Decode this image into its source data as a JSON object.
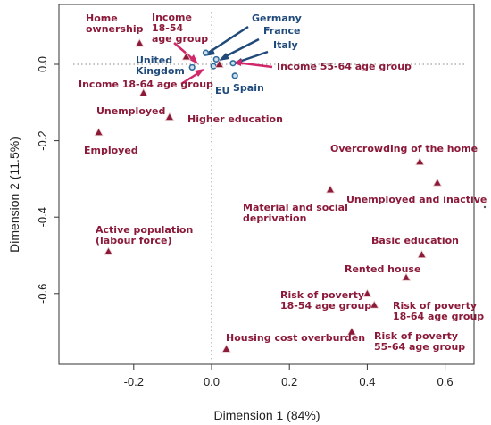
{
  "chart_data": {
    "type": "scatter",
    "xlabel": "Dimension 1 (84%)",
    "ylabel": "Dimension 2 (11.5%)",
    "xlim": [
      -0.4,
      0.7
    ],
    "ylim": [
      -0.78,
      0.15
    ],
    "xticks": [
      -0.2,
      0.0,
      0.2,
      0.4,
      0.6
    ],
    "xtick_labels": [
      "-0.2",
      "0.0",
      "0.2",
      "0.4",
      "0.6"
    ],
    "yticks": [
      0.0,
      -0.2,
      -0.4,
      -0.6
    ],
    "ytick_labels": [
      "0.0",
      "-0.2",
      "-0.4",
      "-0.6"
    ],
    "reference_lines": {
      "x": 0,
      "y": 0,
      "style": "dotted"
    },
    "colors": {
      "variables": "#8b1a3a",
      "countries": "#2e6a9c",
      "arrows_countries": "#1f4a7a",
      "arrows_variables": "#d0286a"
    },
    "variables": [
      {
        "label": [
          "Home",
          "ownership"
        ],
        "x": -0.185,
        "y": 0.055
      },
      {
        "label": [
          "Income",
          "18-54",
          "age group"
        ],
        "x": -0.065,
        "y": 0.02
      },
      {
        "label": [
          "Income 18-64 age group"
        ],
        "x": -0.175,
        "y": -0.075
      },
      {
        "label": [
          "Income 55-64 age group"
        ],
        "x": 0.02,
        "y": 0.0
      },
      {
        "label": [
          "Unemployed"
        ],
        "x": -0.108,
        "y": -0.138
      },
      {
        "label": [
          "Higher education"
        ],
        "x": -0.108,
        "y": -0.138
      },
      {
        "label": [
          "Employed"
        ],
        "x": -0.29,
        "y": -0.178
      },
      {
        "label": [
          "Overcrowding of the home"
        ],
        "x": 0.535,
        "y": -0.255
      },
      {
        "label": [
          "Unemployed and inactive"
        ],
        "x": 0.58,
        "y": -0.31
      },
      {
        "label": [
          "Material and social",
          "deprivation"
        ],
        "x": 0.305,
        "y": -0.328
      },
      {
        "label": [
          "Active population",
          "(labour force)"
        ],
        "x": -0.265,
        "y": -0.49
      },
      {
        "label": [
          "Basic education"
        ],
        "x": 0.54,
        "y": -0.498
      },
      {
        "label": [
          "Rented house"
        ],
        "x": 0.5,
        "y": -0.558
      },
      {
        "label": [
          "Risk  of  poverty",
          "18-54  age  group"
        ],
        "x": 0.4,
        "y": -0.6
      },
      {
        "label": [
          "Risk  of poverty",
          "18-64 age group"
        ],
        "x": 0.418,
        "y": -0.63
      },
      {
        "label": [
          "Risk  of  poverty",
          "55-64 age group"
        ],
        "x": 0.36,
        "y": -0.7
      },
      {
        "label": [
          "Housing cost overburden"
        ],
        "x": 0.038,
        "y": -0.745
      }
    ],
    "countries": [
      {
        "label": [
          "Germany"
        ],
        "x": -0.015,
        "y": 0.03
      },
      {
        "label": [
          "France"
        ],
        "x": 0.012,
        "y": 0.013
      },
      {
        "label": [
          "Italy"
        ],
        "x": 0.055,
        "y": 0.003
      },
      {
        "label": [
          "United",
          "Kingdom"
        ],
        "x": -0.05,
        "y": -0.008
      },
      {
        "label": [
          "EU"
        ],
        "x": 0.005,
        "y": -0.005
      },
      {
        "label": [
          "Spain"
        ],
        "x": 0.06,
        "y": -0.03
      }
    ]
  }
}
